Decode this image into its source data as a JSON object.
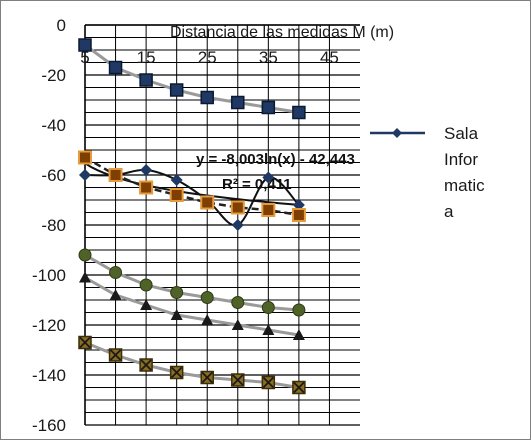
{
  "chart_data": {
    "type": "scatter",
    "title": "",
    "xlabel": "Distancia de las medidas  M (m)",
    "ylabel": "",
    "xlim": [
      5,
      50
    ],
    "ylim": [
      -160,
      0
    ],
    "x_ticks": [
      "5",
      "15",
      "25",
      "35",
      "45"
    ],
    "y_ticks": [
      "0",
      "-20",
      "-40",
      "-60",
      "-80",
      "-100",
      "-120",
      "-140",
      "-160"
    ],
    "grid": true,
    "legend_position": "right",
    "legend_label": "Sala Informatica",
    "legend_lines": [
      "Sala",
      "Infor",
      "matic",
      "a"
    ],
    "trendline_equation": "y = -8,003ln(x) - 42,443",
    "trendline_r2": "R² = 0,411",
    "series": [
      {
        "name": "Sala Informatica",
        "color": "#1f3864",
        "marker": "diamond",
        "line": "smooth",
        "x": [
          5,
          10,
          15,
          20,
          25,
          30,
          35,
          40
        ],
        "y": [
          -60,
          -60,
          -58,
          -62,
          -70,
          -80,
          -61,
          -72
        ]
      },
      {
        "color": "#1f3864",
        "marker": "square",
        "line": "trend",
        "x": [
          5,
          10,
          15,
          20,
          25,
          30,
          35,
          40
        ],
        "y": [
          -8,
          -17,
          -22,
          -26,
          -29,
          -31,
          -33,
          -35
        ]
      },
      {
        "color": "#c0504d",
        "marker": "square-orange",
        "line": "trend",
        "x": [
          5,
          10,
          15,
          20,
          25,
          30,
          35,
          40
        ],
        "y": [
          -53,
          -60,
          -65,
          -68,
          -71,
          -73,
          -74,
          -76
        ]
      },
      {
        "color": "#4f6228",
        "marker": "circle-green",
        "line": "trend",
        "x": [
          5,
          10,
          15,
          20,
          25,
          30,
          35,
          40
        ],
        "y": [
          -92,
          -99,
          -104,
          -107,
          -109,
          -111,
          -113,
          -114
        ]
      },
      {
        "color": "#404040",
        "marker": "triangle",
        "line": "trend",
        "x": [
          5,
          10,
          15,
          20,
          25,
          30,
          35,
          40
        ],
        "y": [
          -101,
          -108,
          -112,
          -116,
          -118,
          -120,
          -122,
          -124
        ]
      },
      {
        "color": "#7f6000",
        "marker": "x-square",
        "line": "trend",
        "x": [
          5,
          10,
          15,
          20,
          25,
          30,
          35,
          40
        ],
        "y": [
          -127,
          -132,
          -136,
          -139,
          -141,
          -142,
          -143,
          -145
        ]
      }
    ]
  }
}
